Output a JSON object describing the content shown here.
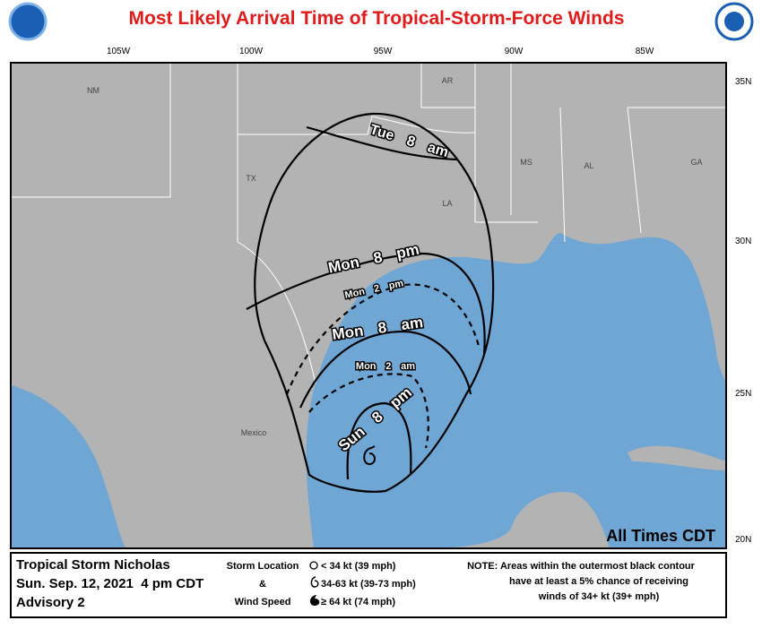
{
  "header": {
    "title": "Most Likely Arrival Time of Tropical-Storm-Force Winds"
  },
  "map": {
    "longitude_labels": [
      "105W",
      "100W",
      "95W",
      "90W",
      "85W"
    ],
    "latitude_labels": [
      "35N",
      "30N",
      "25N",
      "20N"
    ],
    "region_labels": [
      "NM",
      "AR",
      "TX",
      "LA",
      "MS",
      "AL",
      "GA",
      "Mexico"
    ],
    "contour_labels": [
      "Tue 8 am",
      "Mon 8 pm",
      "Mon 2 pm",
      "Mon 8 am",
      "Mon 2 am",
      "Sun 8 pm"
    ],
    "time_zone_note": "All Times CDT"
  },
  "footer": {
    "storm_name": "Tropical Storm Nicholas",
    "issued": "Sun. Sep. 12, 2021  4 pm CDT",
    "advisory": "Advisory 2",
    "legend": {
      "title": [
        "Storm Location",
        "&",
        "Wind Speed"
      ],
      "items": [
        "< 34 kt (39 mph)",
        "34-63 kt (39-73 mph)",
        "≥ 64 kt (74 mph)"
      ]
    },
    "note_lines": [
      "NOTE: Areas within the outermost black contour",
      "have at least a 5% chance of receiving",
      "winds of 34+ kt (39+ mph)"
    ]
  }
}
